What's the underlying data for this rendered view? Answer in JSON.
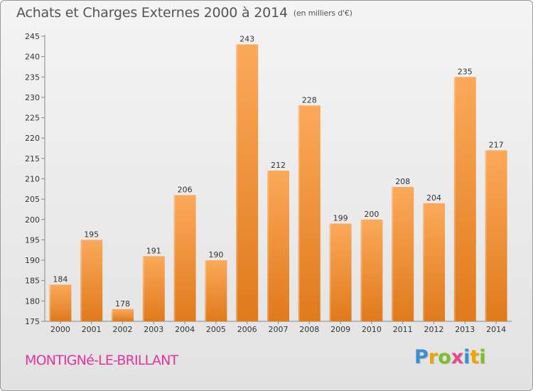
{
  "title": {
    "main": "Achats et Charges Externes 2000 à 2014",
    "unit": "(en milliers d'€)"
  },
  "commune": "MONTIGNé-LE-BRILLANT",
  "logo": {
    "text": "Proxiti",
    "letters": [
      {
        "char": "P",
        "color": "#3a8fd4"
      },
      {
        "char": "r",
        "color": "#f0a500"
      },
      {
        "char": "o",
        "color": "#7bbf2a"
      },
      {
        "char": "x",
        "color": "#e8478c"
      },
      {
        "char": "i",
        "color": "#3a8fd4"
      },
      {
        "char": "t",
        "color": "#f0a500"
      },
      {
        "char": "i",
        "color": "#7bbf2a"
      }
    ]
  },
  "colors": {
    "bar_light": "#fba95a",
    "bar_dark": "#e07a1c",
    "axis": "#888888",
    "grid": "#cccccc"
  },
  "chart_data": {
    "type": "bar",
    "title": "Achats et Charges Externes 2000 à 2014",
    "subtitle": "(en milliers d'€)",
    "xlabel": "",
    "ylabel": "",
    "categories": [
      "2000",
      "2001",
      "2002",
      "2003",
      "2004",
      "2005",
      "2006",
      "2007",
      "2008",
      "2009",
      "2010",
      "2011",
      "2012",
      "2013",
      "2014"
    ],
    "values": [
      184,
      195,
      178,
      191,
      206,
      190,
      243,
      212,
      228,
      199,
      200,
      208,
      204,
      235,
      217
    ],
    "ylim": [
      175,
      245
    ],
    "yticks": [
      175,
      180,
      185,
      190,
      195,
      200,
      205,
      210,
      215,
      220,
      225,
      230,
      235,
      240,
      245
    ],
    "grid": false,
    "data_labels": true
  }
}
